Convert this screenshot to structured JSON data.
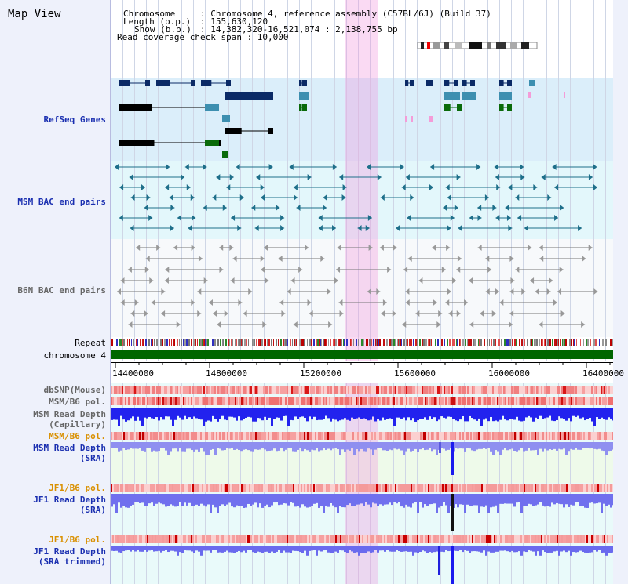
{
  "title": "Map View",
  "header": {
    "chromosome_key": "Chromosome",
    "chromosome_val": ": Chromosome 4, reference assembly (C57BL/6J) (Build 37)",
    "length_key": "Length (b.p.)",
    "length_val": ": 155,630,120",
    "show_key": "Show (b.p.)",
    "show_val": ": 14,382,320-16,521,074 : 2,138,755 bp",
    "coverage_text": "Read coverage check span : 10,000"
  },
  "tracks": {
    "refseq": "RefSeq Genes",
    "msm_bac": "MSM BAC end pairs",
    "b6n_bac": "B6N BAC end pairs",
    "repeat": "Repeat",
    "chromosome": "chromosome 4",
    "dbsnp": "dbSNP(Mouse)",
    "msm_b6_pol_1": "MSM/B6 pol.",
    "msm_depth_cap_1": "MSM Read Depth",
    "msm_depth_cap_2": "(Capillary)",
    "msm_b6_pol_2": "MSM/B6 pol.",
    "msm_depth_sra_1": "MSM Read Depth",
    "msm_depth_sra_2": "(SRA)",
    "jf1_b6_pol_1": "JF1/B6 pol.",
    "jf1_depth_sra_1": "JF1 Read Depth",
    "jf1_depth_sra_2": "(SRA)",
    "jf1_b6_pol_2": "JF1/B6 pol.",
    "jf1_depth_trim_1": "JF1 Read Depth",
    "jf1_depth_trim_2": "(SRA trimmed)"
  },
  "axis_ticks": [
    "14400000",
    "14800000",
    "15200000",
    "15600000",
    "16000000",
    "16400000"
  ],
  "colors": {
    "refseq_band": "#dbeefa",
    "bac_band": "#e3f7fb",
    "highlight": "#f6c6ee",
    "chromosome_bar": "#006600",
    "label_blue": "#1a2fb0",
    "label_orange": "#d99000"
  }
}
